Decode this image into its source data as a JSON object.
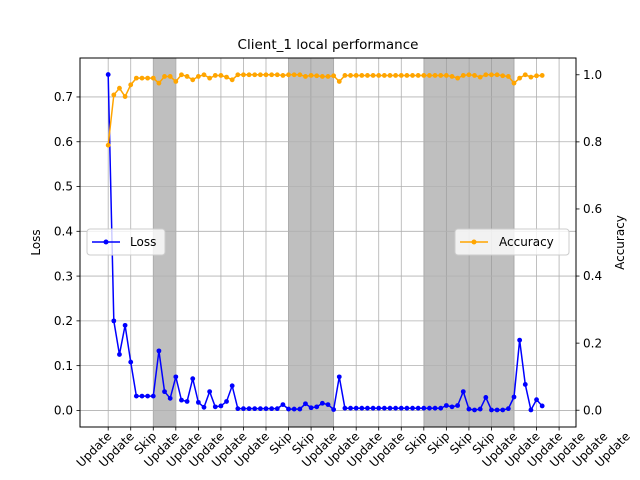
{
  "chart_data": {
    "type": "line",
    "title": "Client_1 local performance",
    "ylabel_left": "Loss",
    "ylabel_right": "Accuracy",
    "ylim_left": [
      -0.037,
      0.787
    ],
    "ylim_right": [
      -0.05,
      1.05
    ],
    "yticks_left": [
      0.0,
      0.1,
      0.2,
      0.3,
      0.4,
      0.5,
      0.6,
      0.7
    ],
    "yticks_left_labels": [
      "0.0",
      "0.1",
      "0.2",
      "0.3",
      "0.4",
      "0.5",
      "0.6",
      "0.7"
    ],
    "yticks_right": [
      0.0,
      0.2,
      0.4,
      0.6,
      0.8,
      1.0
    ],
    "yticks_right_labels": [
      "0.0",
      "0.2",
      "0.4",
      "0.6",
      "0.8",
      "1.0"
    ],
    "xlim": [
      -0.25,
      4.15
    ],
    "xtick_positions": [
      0,
      0.2,
      0.4,
      0.6,
      0.8,
      1.0,
      1.2,
      1.4,
      1.6,
      1.8,
      2.0,
      2.2,
      2.4,
      2.6,
      2.8,
      3.0,
      3.2,
      3.4,
      3.6,
      3.8,
      4.0
    ],
    "xtick_labels": [
      "Update",
      "Update",
      "Skip",
      "Update",
      "Update",
      "Update",
      "Update",
      "Update",
      "Skip",
      "Skip",
      "Update",
      "Update",
      "Update",
      "Update",
      "Skip",
      "Skip",
      "Skip",
      "Skip",
      "Update",
      "Update",
      "Update",
      "Update",
      "Update",
      "Update"
    ],
    "xtick_label_positions": [
      0,
      0.2,
      0.4,
      0.6,
      0.8,
      1.0,
      1.2,
      1.4,
      1.6,
      1.8,
      2.0,
      2.2,
      2.4,
      2.6,
      2.8,
      3.0,
      3.2,
      3.4,
      3.6,
      3.8,
      4.0,
      4.2,
      4.4,
      4.6
    ],
    "skip_ranges": [
      [
        0.4,
        0.6
      ],
      [
        1.6,
        1.8
      ],
      [
        1.8,
        2.0
      ],
      [
        2.8,
        3.0
      ],
      [
        3.0,
        3.2
      ],
      [
        3.2,
        3.4
      ],
      [
        3.4,
        3.6
      ]
    ],
    "grid": true,
    "legend_left_position": "center-left",
    "legend_right_position": "center-right",
    "series": [
      {
        "name": "Loss",
        "axis": "left",
        "color": "#0000ff",
        "values": [
          0.75,
          0.2,
          0.125,
          0.19,
          0.108,
          0.032,
          0.032,
          0.032,
          0.032,
          0.133,
          0.042,
          0.027,
          0.075,
          0.023,
          0.02,
          0.071,
          0.018,
          0.007,
          0.042,
          0.008,
          0.01,
          0.02,
          0.055,
          0.004,
          0.004,
          0.004,
          0.004,
          0.004,
          0.004,
          0.004,
          0.004,
          0.013,
          0.003,
          0.003,
          0.003,
          0.015,
          0.006,
          0.008,
          0.016,
          0.013,
          0.002,
          0.075,
          0.005,
          0.005,
          0.005,
          0.005,
          0.005,
          0.005,
          0.005,
          0.005,
          0.005,
          0.005,
          0.005,
          0.005,
          0.005,
          0.005,
          0.005,
          0.005,
          0.005,
          0.005,
          0.011,
          0.008,
          0.011,
          0.042,
          0.003,
          0.001,
          0.003,
          0.029,
          0.001,
          0.001,
          0.001,
          0.004,
          0.03,
          0.157,
          0.058,
          0.001,
          0.024,
          0.01
        ]
      },
      {
        "name": "Accuracy",
        "axis": "right",
        "color": "#ffa500",
        "values": [
          0.79,
          0.94,
          0.96,
          0.935,
          0.97,
          0.99,
          0.99,
          0.99,
          0.99,
          0.975,
          0.995,
          0.995,
          0.98,
          1.0,
          0.995,
          0.985,
          0.995,
          1.0,
          0.99,
          0.998,
          0.998,
          0.993,
          0.985,
          1.0,
          1.0,
          1.0,
          1.0,
          1.0,
          1.0,
          1.0,
          1.0,
          0.998,
          1.0,
          1.0,
          1.0,
          0.995,
          0.998,
          0.997,
          0.995,
          0.995,
          0.997,
          0.98,
          0.998,
          0.998,
          0.998,
          0.998,
          0.998,
          0.998,
          0.998,
          0.998,
          0.998,
          0.998,
          0.998,
          0.998,
          0.998,
          0.998,
          0.998,
          0.998,
          0.998,
          0.998,
          0.998,
          0.995,
          0.99,
          0.998,
          1.0,
          0.998,
          0.993,
          1.0,
          1.0,
          1.0,
          0.997,
          0.995,
          0.975,
          0.99,
          1.0,
          0.993,
          0.997,
          0.998
        ]
      }
    ]
  }
}
